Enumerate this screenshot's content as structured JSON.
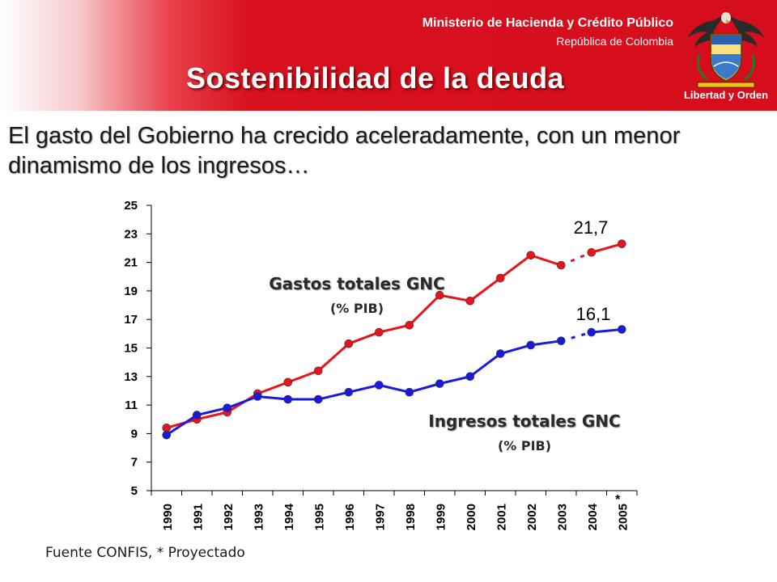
{
  "header": {
    "ministry": "Ministerio de Hacienda y Crédito Público",
    "republic": "República de Colombia",
    "title": "Sostenibilidad de la deuda",
    "crest_motto": "Libertad y Orden",
    "crest_icon": "colombia-coat-of-arms-icon"
  },
  "subtitle": "El gasto del Gobierno ha crecido aceleradamente, con un menor dinamismo de los ingresos…",
  "footer": {
    "source": "Fuente CONFIS, * Proyectado"
  },
  "colors": {
    "banner": "#d50d1c",
    "gastos": "#e8141c",
    "ingresos": "#1a1adc"
  },
  "chart_data": {
    "type": "line",
    "categories": [
      "1990",
      "1991",
      "1992",
      "1993",
      "1994",
      "1995",
      "1996",
      "1997",
      "1998",
      "1999",
      "2000",
      "2001",
      "2002",
      "2003",
      "2004",
      "2005"
    ],
    "projected_marker": "*",
    "projected_from_index": 14,
    "ylim": [
      5,
      25
    ],
    "yticks": [
      5,
      7,
      9,
      11,
      13,
      15,
      17,
      19,
      21,
      23,
      25
    ],
    "grid": false,
    "series": [
      {
        "name": "Gastos totales GNC",
        "unit": "(% PIB)",
        "color": "#e8141c",
        "values": [
          9.4,
          10.0,
          10.5,
          11.8,
          12.6,
          13.4,
          15.3,
          16.1,
          16.6,
          18.7,
          18.3,
          19.9,
          21.5,
          20.8,
          21.7,
          22.3
        ],
        "annotation": "21,7"
      },
      {
        "name": "Ingresos totales GNC",
        "unit": "(% PIB)",
        "color": "#1a1adc",
        "values": [
          8.9,
          10.3,
          10.8,
          11.6,
          11.4,
          11.4,
          11.9,
          12.4,
          11.9,
          12.5,
          13.0,
          14.6,
          15.2,
          15.5,
          16.1,
          16.3
        ],
        "annotation": "16,1"
      }
    ]
  }
}
